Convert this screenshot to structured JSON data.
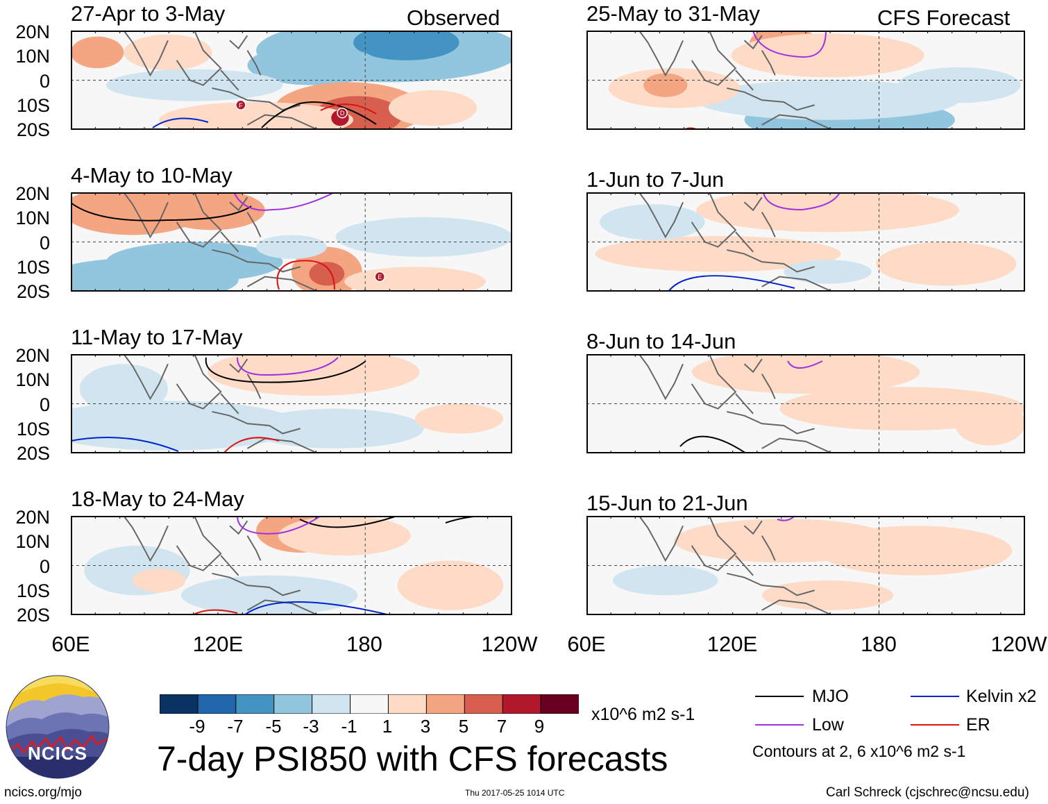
{
  "column_labels": {
    "left": "Observed",
    "right": "CFS Forecast"
  },
  "lat_labels": [
    "20N",
    "10N",
    "0",
    "10S",
    "20S"
  ],
  "lon_labels": [
    "60E",
    "120E",
    "180",
    "120W"
  ],
  "panels": [
    {
      "title": "27-Apr to 3-May",
      "column": "observed"
    },
    {
      "title": "4-May to 10-May",
      "column": "observed"
    },
    {
      "title": "11-May to 17-May",
      "column": "observed"
    },
    {
      "title": "18-May to 24-May",
      "column": "observed"
    },
    {
      "title": "25-May to 31-May",
      "column": "forecast"
    },
    {
      "title": "1-Jun to 7-Jun",
      "column": "forecast"
    },
    {
      "title": "8-Jun to 14-Jun",
      "column": "forecast"
    },
    {
      "title": "15-Jun to 21-Jun",
      "column": "forecast"
    }
  ],
  "colorbar": {
    "colors": [
      "#0a3263",
      "#2166ac",
      "#4393c3",
      "#92c5de",
      "#d1e5f0",
      "#f7f7f7",
      "#fddbc7",
      "#f4a582",
      "#d6604d",
      "#b2182b",
      "#67001f"
    ],
    "tick_labels": [
      "-9",
      "-7",
      "-5",
      "-3",
      "-1",
      "1",
      "3",
      "5",
      "7",
      "9"
    ],
    "units": "x10^6 m2 s-1"
  },
  "main_title": "7-day PSI850 with CFS forecasts",
  "legend": {
    "items": [
      {
        "label": "MJO",
        "color": "#000000"
      },
      {
        "label": "Kelvin x2",
        "color": "#0022cc"
      },
      {
        "label": "Low",
        "color": "#a030e0"
      },
      {
        "label": "ER",
        "color": "#dd1111"
      }
    ],
    "note": "Contours at 2, 6 x10^6 m2 s-1"
  },
  "logo": {
    "text": "NCICS"
  },
  "footer": {
    "url": "ncics.org/mjo",
    "timestamp": "Thu 2017-05-25 1014 UTC",
    "credit": "Carl Schreck (cjschrec@ncsu.edu)"
  },
  "storm_markers": [
    {
      "panel": 0,
      "letter": "F"
    },
    {
      "panel": 0,
      "letter": "D"
    },
    {
      "panel": 1,
      "letter": "E"
    }
  ],
  "chart_data": {
    "type": "heatmap",
    "variable": "7-day PSI850 anomaly",
    "units": "x10^6 m2 s-1",
    "x_range": [
      "60E",
      "120W"
    ],
    "y_range": [
      "20S",
      "20N"
    ],
    "levels": [
      -9,
      -7,
      -5,
      -3,
      -1,
      1,
      3,
      5,
      7,
      9
    ],
    "contours": "Contours at 2, 6 x10^6 m2 s-1"
  }
}
